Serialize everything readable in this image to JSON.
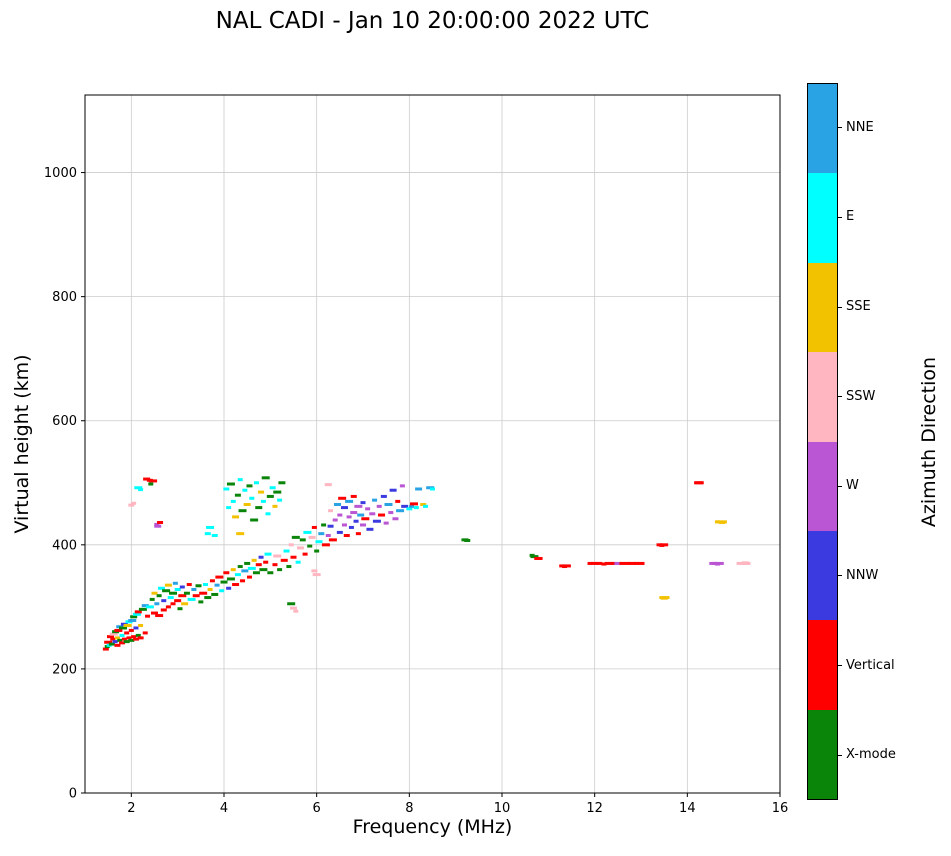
{
  "chart_data": {
    "type": "scatter",
    "title": "NAL CADI - Jan 10 20:00:00 2022 UTC",
    "xlabel": "Frequency (MHz)",
    "ylabel": "Virtual height (km)",
    "xlim": [
      1,
      16
    ],
    "ylim": [
      0,
      1125
    ],
    "x_ticks": [
      2,
      4,
      6,
      8,
      10,
      12,
      14,
      16
    ],
    "y_ticks": [
      0,
      200,
      400,
      600,
      800,
      1000
    ],
    "grid": true,
    "grid_color": "#cccccc",
    "marker": "horizontal-dash",
    "legend": {
      "title": "Azimuth Direction",
      "position": "right-colorbar",
      "entries_top_to_bottom": [
        "NNE",
        "E",
        "SSE",
        "SSW",
        "W",
        "NNW",
        "Vertical",
        "X-mode"
      ]
    },
    "directions": [
      {
        "name": "NNE",
        "color": "#29a3e3"
      },
      {
        "name": "E",
        "color": "#00ffff"
      },
      {
        "name": "SSE",
        "color": "#f2c200"
      },
      {
        "name": "SSW",
        "color": "#ffb6c1"
      },
      {
        "name": "W",
        "color": "#ba55d3"
      },
      {
        "name": "NNW",
        "color": "#3a3ae0"
      },
      {
        "name": "Vertical",
        "color": "#ff0000"
      },
      {
        "name": "X-mode",
        "color": "#0a850a"
      }
    ],
    "points_format": [
      "frequency_MHz",
      "virtual_height_km",
      "direction_index"
    ],
    "points": [
      [
        1.45,
        232,
        6
      ],
      [
        1.48,
        236,
        7
      ],
      [
        1.5,
        243,
        6
      ],
      [
        1.52,
        238,
        1
      ],
      [
        1.55,
        252,
        6
      ],
      [
        1.58,
        240,
        7
      ],
      [
        1.6,
        248,
        6
      ],
      [
        1.62,
        256,
        3
      ],
      [
        1.65,
        244,
        5
      ],
      [
        1.66,
        260,
        7
      ],
      [
        1.7,
        238,
        6
      ],
      [
        1.7,
        250,
        2
      ],
      [
        1.72,
        262,
        6
      ],
      [
        1.75,
        246,
        7
      ],
      [
        1.75,
        268,
        0
      ],
      [
        1.8,
        242,
        6
      ],
      [
        1.8,
        254,
        1
      ],
      [
        1.82,
        266,
        7
      ],
      [
        1.85,
        248,
        6
      ],
      [
        1.85,
        272,
        5
      ],
      [
        1.9,
        244,
        7
      ],
      [
        1.9,
        258,
        6
      ],
      [
        1.92,
        270,
        2
      ],
      [
        1.95,
        250,
        6
      ],
      [
        1.95,
        276,
        1
      ],
      [
        2.0,
        246,
        7
      ],
      [
        2.0,
        262,
        6
      ],
      [
        2.02,
        278,
        0
      ],
      [
        2.05,
        252,
        6
      ],
      [
        2.05,
        284,
        7
      ],
      [
        2.1,
        248,
        6
      ],
      [
        2.1,
        266,
        5
      ],
      [
        2.12,
        288,
        1
      ],
      [
        2.15,
        254,
        7
      ],
      [
        2.15,
        292,
        6
      ],
      [
        2.2,
        250,
        6
      ],
      [
        2.2,
        270,
        2
      ],
      [
        2.25,
        296,
        7
      ],
      [
        2.3,
        258,
        6
      ],
      [
        2.3,
        302,
        0
      ],
      [
        2.0,
        464,
        3
      ],
      [
        2.05,
        467,
        3
      ],
      [
        2.15,
        492,
        1
      ],
      [
        2.2,
        489,
        1
      ],
      [
        2.33,
        506,
        6
      ],
      [
        2.4,
        504,
        6
      ],
      [
        2.42,
        498,
        7
      ],
      [
        2.47,
        503,
        6
      ],
      [
        2.55,
        433,
        4
      ],
      [
        2.57,
        430,
        4
      ],
      [
        2.62,
        436,
        6
      ],
      [
        2.35,
        285,
        6
      ],
      [
        2.4,
        300,
        1
      ],
      [
        2.45,
        312,
        7
      ],
      [
        2.5,
        290,
        6
      ],
      [
        2.5,
        322,
        2
      ],
      [
        2.55,
        305,
        0
      ],
      [
        2.6,
        286,
        6
      ],
      [
        2.6,
        318,
        7
      ],
      [
        2.65,
        330,
        1
      ],
      [
        2.7,
        295,
        6
      ],
      [
        2.7,
        310,
        5
      ],
      [
        2.75,
        326,
        7
      ],
      [
        2.8,
        300,
        6
      ],
      [
        2.8,
        335,
        2
      ],
      [
        2.85,
        315,
        1
      ],
      [
        2.9,
        305,
        6
      ],
      [
        2.9,
        322,
        7
      ],
      [
        2.95,
        338,
        0
      ],
      [
        3.0,
        310,
        6
      ],
      [
        3.0,
        328,
        1
      ],
      [
        3.05,
        297,
        7
      ],
      [
        3.1,
        318,
        6
      ],
      [
        3.1,
        332,
        5
      ],
      [
        3.15,
        305,
        2
      ],
      [
        3.2,
        322,
        7
      ],
      [
        3.25,
        336,
        6
      ],
      [
        3.3,
        312,
        1
      ],
      [
        3.35,
        328,
        0
      ],
      [
        3.4,
        318,
        6
      ],
      [
        3.45,
        334,
        7
      ],
      [
        3.5,
        308,
        7
      ],
      [
        3.55,
        322,
        6
      ],
      [
        3.6,
        336,
        1
      ],
      [
        3.65,
        315,
        7
      ],
      [
        3.65,
        418,
        1
      ],
      [
        3.7,
        328,
        2
      ],
      [
        3.7,
        428,
        1
      ],
      [
        3.75,
        342,
        6
      ],
      [
        3.8,
        320,
        7
      ],
      [
        3.8,
        415,
        1
      ],
      [
        3.85,
        335,
        0
      ],
      [
        3.9,
        348,
        6
      ],
      [
        3.95,
        326,
        1
      ],
      [
        4.0,
        340,
        7
      ],
      [
        4.05,
        355,
        6
      ],
      [
        4.1,
        330,
        5
      ],
      [
        4.15,
        345,
        7
      ],
      [
        4.2,
        360,
        2
      ],
      [
        4.25,
        336,
        6
      ],
      [
        4.3,
        352,
        1
      ],
      [
        4.35,
        365,
        7
      ],
      [
        4.35,
        418,
        2
      ],
      [
        4.4,
        342,
        6
      ],
      [
        4.45,
        358,
        0
      ],
      [
        4.5,
        370,
        7
      ],
      [
        4.55,
        348,
        6
      ],
      [
        4.6,
        362,
        1
      ],
      [
        4.65,
        375,
        2
      ],
      [
        4.7,
        355,
        7
      ],
      [
        4.75,
        368,
        6
      ],
      [
        4.8,
        380,
        5
      ],
      [
        4.85,
        360,
        7
      ],
      [
        4.9,
        372,
        6
      ],
      [
        4.95,
        385,
        1
      ],
      [
        4.05,
        490,
        1
      ],
      [
        4.1,
        460,
        1
      ],
      [
        4.15,
        498,
        7
      ],
      [
        4.2,
        470,
        1
      ],
      [
        4.25,
        445,
        2
      ],
      [
        4.3,
        480,
        7
      ],
      [
        4.35,
        505,
        1
      ],
      [
        4.4,
        455,
        7
      ],
      [
        4.45,
        488,
        1
      ],
      [
        4.5,
        465,
        2
      ],
      [
        4.55,
        495,
        7
      ],
      [
        4.6,
        475,
        1
      ],
      [
        4.65,
        440,
        7
      ],
      [
        4.7,
        500,
        1
      ],
      [
        4.75,
        460,
        7
      ],
      [
        4.8,
        485,
        2
      ],
      [
        4.85,
        470,
        1
      ],
      [
        4.9,
        508,
        7
      ],
      [
        4.95,
        450,
        1
      ],
      [
        5.0,
        478,
        7
      ],
      [
        5.05,
        492,
        1
      ],
      [
        5.1,
        462,
        2
      ],
      [
        5.15,
        485,
        7
      ],
      [
        5.2,
        472,
        1
      ],
      [
        5.25,
        500,
        7
      ],
      [
        5.0,
        355,
        7
      ],
      [
        5.1,
        368,
        6
      ],
      [
        5.15,
        382,
        3
      ],
      [
        5.2,
        360,
        7
      ],
      [
        5.3,
        375,
        6
      ],
      [
        5.35,
        390,
        1
      ],
      [
        5.4,
        365,
        7
      ],
      [
        5.45,
        305,
        7
      ],
      [
        5.45,
        400,
        3
      ],
      [
        5.5,
        298,
        3
      ],
      [
        5.5,
        380,
        6
      ],
      [
        5.55,
        293,
        3
      ],
      [
        5.55,
        412,
        7
      ],
      [
        5.6,
        372,
        1
      ],
      [
        5.65,
        395,
        3
      ],
      [
        5.7,
        408,
        7
      ],
      [
        5.75,
        385,
        6
      ],
      [
        5.8,
        420,
        1
      ],
      [
        5.85,
        398,
        7
      ],
      [
        5.9,
        412,
        3
      ],
      [
        5.95,
        358,
        3
      ],
      [
        5.95,
        428,
        6
      ],
      [
        6.0,
        352,
        3
      ],
      [
        6.0,
        390,
        7
      ],
      [
        6.05,
        405,
        1
      ],
      [
        6.1,
        418,
        0
      ],
      [
        6.15,
        432,
        7
      ],
      [
        6.2,
        400,
        6
      ],
      [
        6.25,
        415,
        4
      ],
      [
        6.25,
        497,
        3
      ],
      [
        6.3,
        430,
        5
      ],
      [
        6.3,
        455,
        3
      ],
      [
        6.35,
        408,
        6
      ],
      [
        6.4,
        440,
        4
      ],
      [
        6.45,
        465,
        0
      ],
      [
        6.5,
        420,
        5
      ],
      [
        6.5,
        448,
        4
      ],
      [
        6.55,
        475,
        6
      ],
      [
        6.6,
        432,
        4
      ],
      [
        6.6,
        460,
        5
      ],
      [
        6.65,
        415,
        6
      ],
      [
        6.7,
        445,
        4
      ],
      [
        6.7,
        470,
        0
      ],
      [
        6.75,
        428,
        5
      ],
      [
        6.8,
        452,
        4
      ],
      [
        6.8,
        478,
        6
      ],
      [
        6.85,
        438,
        5
      ],
      [
        6.9,
        462,
        4
      ],
      [
        6.9,
        418,
        6
      ],
      [
        6.95,
        448,
        0
      ],
      [
        7.0,
        432,
        4
      ],
      [
        7.0,
        468,
        5
      ],
      [
        7.05,
        442,
        6
      ],
      [
        7.1,
        458,
        4
      ],
      [
        7.15,
        425,
        5
      ],
      [
        7.2,
        450,
        4
      ],
      [
        7.25,
        472,
        0
      ],
      [
        7.3,
        438,
        5
      ],
      [
        7.35,
        462,
        4
      ],
      [
        7.4,
        448,
        6
      ],
      [
        7.45,
        478,
        5
      ],
      [
        7.5,
        435,
        4
      ],
      [
        7.55,
        465,
        0
      ],
      [
        7.6,
        452,
        4
      ],
      [
        7.65,
        488,
        5
      ],
      [
        7.7,
        442,
        4
      ],
      [
        7.75,
        470,
        6
      ],
      [
        7.8,
        455,
        0
      ],
      [
        7.85,
        495,
        4
      ],
      [
        7.9,
        462,
        5
      ],
      [
        8.0,
        458,
        1
      ],
      [
        8.05,
        462,
        0
      ],
      [
        8.1,
        466,
        6
      ],
      [
        8.15,
        460,
        1
      ],
      [
        8.2,
        490,
        0
      ],
      [
        8.3,
        465,
        2
      ],
      [
        8.35,
        462,
        1
      ],
      [
        8.45,
        492,
        0
      ],
      [
        8.5,
        490,
        1
      ],
      [
        9.2,
        408,
        7
      ],
      [
        9.25,
        407,
        7
      ],
      [
        10.65,
        383,
        7
      ],
      [
        10.7,
        381,
        7
      ],
      [
        10.75,
        378,
        6
      ],
      [
        10.8,
        378,
        6
      ],
      [
        11.3,
        366,
        6
      ],
      [
        11.35,
        365,
        6
      ],
      [
        11.4,
        366,
        6
      ],
      [
        11.9,
        370,
        6
      ],
      [
        12.0,
        370,
        6
      ],
      [
        12.1,
        370,
        6
      ],
      [
        12.2,
        369,
        6
      ],
      [
        12.3,
        370,
        6
      ],
      [
        12.4,
        370,
        6
      ],
      [
        12.5,
        370,
        4
      ],
      [
        12.6,
        370,
        6
      ],
      [
        12.7,
        370,
        6
      ],
      [
        12.8,
        370,
        6
      ],
      [
        12.9,
        370,
        6
      ],
      [
        13.0,
        370,
        6
      ],
      [
        13.4,
        400,
        6
      ],
      [
        13.45,
        399,
        6
      ],
      [
        13.5,
        400,
        6
      ],
      [
        13.45,
        315,
        2
      ],
      [
        13.5,
        314,
        2
      ],
      [
        13.55,
        315,
        2
      ],
      [
        14.2,
        500,
        6
      ],
      [
        14.25,
        500,
        6
      ],
      [
        14.3,
        500,
        6
      ],
      [
        14.55,
        370,
        4
      ],
      [
        14.6,
        370,
        4
      ],
      [
        14.65,
        369,
        4
      ],
      [
        14.7,
        370,
        4
      ],
      [
        14.65,
        437,
        2
      ],
      [
        14.7,
        437,
        2
      ],
      [
        14.75,
        436,
        2
      ],
      [
        14.8,
        437,
        2
      ],
      [
        15.15,
        370,
        3
      ],
      [
        15.2,
        370,
        3
      ],
      [
        15.25,
        371,
        3
      ],
      [
        15.3,
        370,
        3
      ]
    ]
  }
}
